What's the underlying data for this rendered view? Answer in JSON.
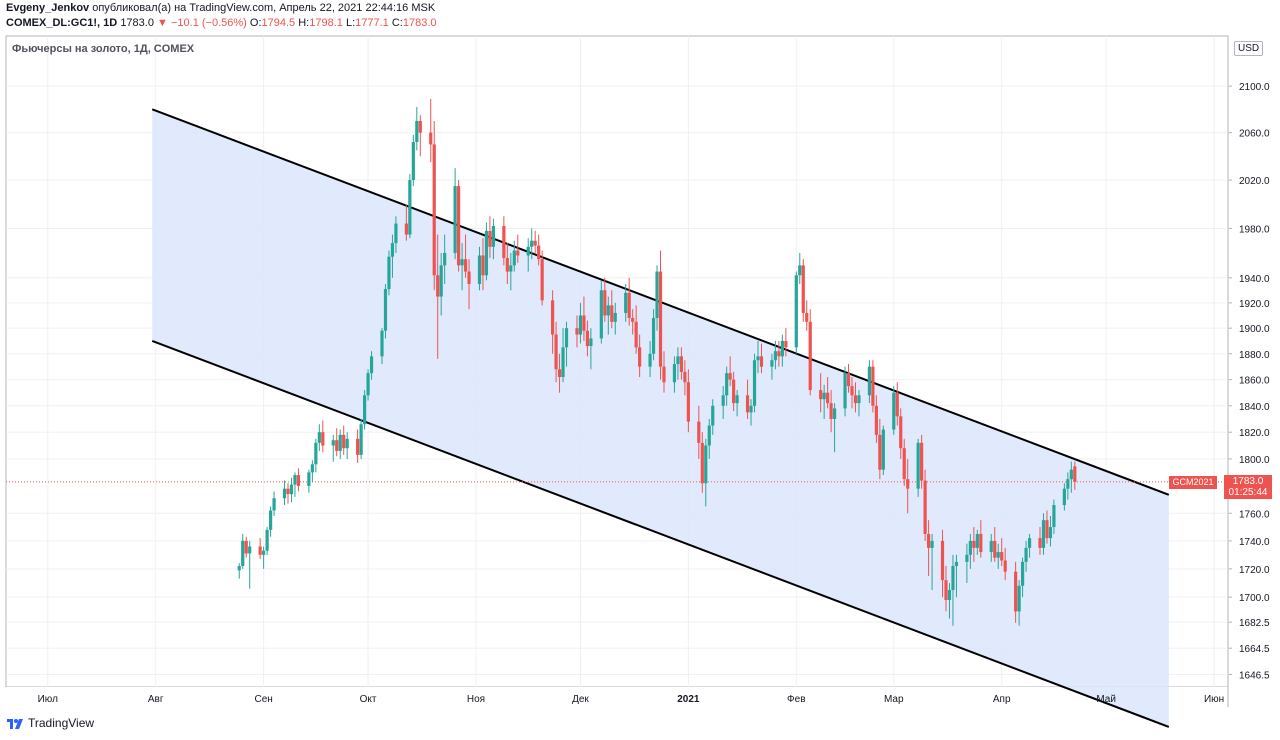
{
  "header": {
    "author": "Evgeny_Jenkov",
    "published_text": "опубликовал(а) на TradingView.com, Апрель 22, 2021 22:44:16 MSK",
    "symbol": "COMEX_DL:GC1!, 1D",
    "last": "1783.0",
    "change": "−10.1 (−0.56%)",
    "ohlc": {
      "o_label": "O:",
      "o": "1794.5",
      "h_label": "H:",
      "h": "1798.1",
      "l_label": "L:",
      "l": "1777.1",
      "c_label": "C:",
      "c": "1783.0"
    }
  },
  "chart_title": "Фьючерсы на золото, 1Д, COMEX",
  "currency_button": "USD",
  "price_label": {
    "symbol": "GCM2021",
    "price": "1783.0",
    "countdown": "01:25:44"
  },
  "footer_logo": "TradingView",
  "colors": {
    "up": "#26a69a",
    "down": "#ef5350",
    "channel_fill": "#dbe6fb",
    "channel_line": "#000000",
    "grid": "#eef0f3"
  },
  "chart_data": {
    "type": "candlestick",
    "title": "Фьючерсы на золото, 1Д, COMEX",
    "y_ticks": [
      "2100.0",
      "2060.0",
      "2020.0",
      "1980.0",
      "1940.0",
      "1920.0",
      "1900.0",
      "1880.0",
      "1860.0",
      "1840.0",
      "1820.0",
      "1800.0",
      "1760.0",
      "1740.0",
      "1720.0",
      "1700.0",
      "1682.5",
      "1664.5",
      "1646.5"
    ],
    "x_ticks": [
      "Июл",
      "Авг",
      "Сен",
      "Окт",
      "Ноя",
      "Дек",
      "2021",
      "Фев",
      "Мар",
      "Апр",
      "Май",
      "Июн"
    ],
    "x_range": [
      "2020-06-19",
      "2021-06-05"
    ],
    "last_date": "2021-04-22",
    "last_price": 1783.0,
    "candles": [
      [
        1719,
        1724,
        1713,
        1722
      ],
      [
        1722,
        1745,
        1720,
        1740
      ],
      [
        1740,
        1743,
        1728,
        1731
      ],
      [
        1731,
        1740,
        1706,
        1736
      ],
      [
        1736,
        1742,
        1727,
        1730
      ],
      [
        1730,
        1736,
        1720,
        1733
      ],
      [
        1733,
        1750,
        1730,
        1748
      ],
      [
        1748,
        1765,
        1743,
        1762
      ],
      [
        1762,
        1776,
        1758,
        1771
      ],
      [
        1771,
        1784,
        1766,
        1778
      ],
      [
        1778,
        1782,
        1767,
        1774
      ],
      [
        1774,
        1786,
        1768,
        1781
      ],
      [
        1781,
        1790,
        1772,
        1788
      ],
      [
        1788,
        1793,
        1776,
        1780
      ],
      [
        1780,
        1792,
        1775,
        1790
      ],
      [
        1790,
        1799,
        1783,
        1796
      ],
      [
        1796,
        1815,
        1790,
        1812
      ],
      [
        1812,
        1826,
        1806,
        1820
      ],
      [
        1820,
        1829,
        1805,
        1810
      ],
      [
        1810,
        1818,
        1798,
        1814
      ],
      [
        1814,
        1823,
        1802,
        1806
      ],
      [
        1806,
        1822,
        1800,
        1818
      ],
      [
        1818,
        1825,
        1803,
        1808
      ],
      [
        1808,
        1820,
        1800,
        1815
      ],
      [
        1815,
        1822,
        1797,
        1803
      ],
      [
        1803,
        1830,
        1800,
        1826
      ],
      [
        1826,
        1852,
        1822,
        1848
      ],
      [
        1848,
        1868,
        1844,
        1865
      ],
      [
        1865,
        1882,
        1860,
        1878
      ],
      [
        1878,
        1900,
        1872,
        1898
      ],
      [
        1898,
        1935,
        1892,
        1931
      ],
      [
        1931,
        1962,
        1926,
        1957
      ],
      [
        1957,
        1975,
        1940,
        1968
      ],
      [
        1968,
        1990,
        1960,
        1984
      ],
      [
        1984,
        2000,
        1970,
        1975
      ],
      [
        1975,
        2025,
        1972,
        2020
      ],
      [
        2020,
        2058,
        2015,
        2052
      ],
      [
        2052,
        2082,
        2045,
        2070
      ],
      [
        2070,
        2075,
        2040,
        2060
      ],
      [
        2060,
        2089,
        2035,
        2050
      ],
      [
        2050,
        2070,
        1930,
        1942
      ],
      [
        1942,
        1975,
        1876,
        1925
      ],
      [
        1925,
        1960,
        1910,
        1950
      ],
      [
        1950,
        1975,
        1935,
        1960
      ],
      [
        1960,
        2030,
        1955,
        2015
      ],
      [
        2015,
        2020,
        1945,
        1950
      ],
      [
        1950,
        1968,
        1930,
        1955
      ],
      [
        1955,
        1975,
        1940,
        1945
      ],
      [
        1945,
        1955,
        1915,
        1935
      ],
      [
        1935,
        1965,
        1930,
        1958
      ],
      [
        1958,
        1972,
        1930,
        1942
      ],
      [
        1942,
        1985,
        1938,
        1978
      ],
      [
        1978,
        1990,
        1956,
        1965
      ],
      [
        1965,
        1988,
        1955,
        1982
      ],
      [
        1982,
        1990,
        1950,
        1956
      ],
      [
        1956,
        1968,
        1935,
        1945
      ],
      [
        1945,
        1960,
        1930,
        1950
      ],
      [
        1950,
        1970,
        1945,
        1962
      ],
      [
        1962,
        1975,
        1952,
        1958
      ],
      [
        1958,
        1972,
        1945,
        1965
      ],
      [
        1965,
        1980,
        1955,
        1970
      ],
      [
        1970,
        1978,
        1960,
        1966
      ],
      [
        1966,
        1975,
        1950,
        1955
      ],
      [
        1955,
        1962,
        1918,
        1922
      ],
      [
        1922,
        1930,
        1880,
        1895
      ],
      [
        1895,
        1905,
        1858,
        1868
      ],
      [
        1868,
        1880,
        1850,
        1862
      ],
      [
        1862,
        1900,
        1858,
        1885
      ],
      [
        1885,
        1905,
        1870,
        1900
      ],
      [
        1900,
        1910,
        1885,
        1895
      ],
      [
        1895,
        1920,
        1888,
        1910
      ],
      [
        1910,
        1925,
        1890,
        1898
      ],
      [
        1898,
        1906,
        1878,
        1886
      ],
      [
        1886,
        1900,
        1868,
        1892
      ],
      [
        1892,
        1938,
        1888,
        1930
      ],
      [
        1930,
        1940,
        1905,
        1910
      ],
      [
        1910,
        1925,
        1895,
        1918
      ],
      [
        1918,
        1930,
        1900,
        1905
      ],
      [
        1905,
        1920,
        1895,
        1912
      ],
      [
        1912,
        1935,
        1905,
        1928
      ],
      [
        1928,
        1940,
        1902,
        1908
      ],
      [
        1908,
        1915,
        1895,
        1905
      ],
      [
        1905,
        1918,
        1880,
        1885
      ],
      [
        1885,
        1895,
        1862,
        1870
      ],
      [
        1870,
        1890,
        1862,
        1880
      ],
      [
        1880,
        1915,
        1875,
        1908
      ],
      [
        1908,
        1950,
        1898,
        1945
      ],
      [
        1945,
        1962,
        1860,
        1870
      ],
      [
        1870,
        1882,
        1850,
        1858
      ],
      [
        1858,
        1878,
        1850,
        1872
      ],
      [
        1872,
        1885,
        1860,
        1878
      ],
      [
        1878,
        1885,
        1860,
        1866
      ],
      [
        1866,
        1875,
        1848,
        1858
      ],
      [
        1858,
        1868,
        1820,
        1828
      ],
      [
        1828,
        1840,
        1800,
        1812
      ],
      [
        1812,
        1820,
        1775,
        1782
      ],
      [
        1782,
        1815,
        1765,
        1810
      ],
      [
        1810,
        1830,
        1800,
        1825
      ],
      [
        1825,
        1845,
        1818,
        1840
      ],
      [
        1840,
        1855,
        1830,
        1848
      ],
      [
        1848,
        1870,
        1840,
        1865
      ],
      [
        1865,
        1878,
        1855,
        1860
      ],
      [
        1860,
        1866,
        1836,
        1842
      ],
      [
        1842,
        1852,
        1832,
        1848
      ],
      [
        1848,
        1860,
        1830,
        1835
      ],
      [
        1835,
        1845,
        1825,
        1840
      ],
      [
        1840,
        1880,
        1835,
        1875
      ],
      [
        1875,
        1890,
        1865,
        1878
      ],
      [
        1878,
        1888,
        1865,
        1870
      ],
      [
        1870,
        1880,
        1860,
        1875
      ],
      [
        1875,
        1890,
        1868,
        1882
      ],
      [
        1882,
        1890,
        1870,
        1878
      ],
      [
        1878,
        1895,
        1870,
        1890
      ],
      [
        1890,
        1900,
        1878,
        1885
      ],
      [
        1885,
        1945,
        1880,
        1942
      ],
      [
        1942,
        1960,
        1935,
        1950
      ],
      [
        1950,
        1955,
        1905,
        1912
      ],
      [
        1912,
        1922,
        1898,
        1905
      ],
      [
        1905,
        1915,
        1848,
        1852
      ],
      [
        1852,
        1865,
        1835,
        1845
      ],
      [
        1845,
        1856,
        1830,
        1850
      ],
      [
        1850,
        1862,
        1838,
        1842
      ],
      [
        1842,
        1852,
        1820,
        1830
      ],
      [
        1830,
        1842,
        1805,
        1838
      ],
      [
        1838,
        1870,
        1832,
        1865
      ],
      [
        1865,
        1872,
        1850,
        1855
      ],
      [
        1855,
        1862,
        1838,
        1848
      ],
      [
        1848,
        1858,
        1835,
        1842
      ],
      [
        1842,
        1852,
        1832,
        1848
      ],
      [
        1848,
        1875,
        1842,
        1870
      ],
      [
        1870,
        1875,
        1835,
        1840
      ],
      [
        1840,
        1848,
        1812,
        1818
      ],
      [
        1818,
        1830,
        1785,
        1792
      ],
      [
        1792,
        1825,
        1788,
        1822
      ],
      [
        1822,
        1855,
        1818,
        1850
      ],
      [
        1850,
        1858,
        1825,
        1832
      ],
      [
        1832,
        1838,
        1800,
        1808
      ],
      [
        1808,
        1815,
        1780,
        1785
      ],
      [
        1785,
        1800,
        1760,
        1778
      ],
      [
        1778,
        1815,
        1772,
        1812
      ],
      [
        1812,
        1818,
        1778,
        1784
      ],
      [
        1784,
        1792,
        1740,
        1745
      ],
      [
        1745,
        1755,
        1715,
        1735
      ],
      [
        1735,
        1745,
        1705,
        1740
      ],
      [
        1740,
        1748,
        1700,
        1712
      ],
      [
        1712,
        1722,
        1690,
        1698
      ],
      [
        1698,
        1710,
        1685,
        1705
      ],
      [
        1705,
        1730,
        1680,
        1722
      ],
      [
        1722,
        1730,
        1700,
        1725
      ],
      [
        1725,
        1738,
        1710,
        1730
      ],
      [
        1730,
        1745,
        1720,
        1740
      ],
      [
        1740,
        1750,
        1725,
        1735
      ],
      [
        1735,
        1748,
        1730,
        1745
      ],
      [
        1745,
        1755,
        1728,
        1732
      ],
      [
        1732,
        1745,
        1725,
        1740
      ],
      [
        1740,
        1750,
        1725,
        1728
      ],
      [
        1728,
        1738,
        1720,
        1732
      ],
      [
        1732,
        1742,
        1722,
        1726
      ],
      [
        1726,
        1735,
        1712,
        1718
      ],
      [
        1718,
        1725,
        1682,
        1690
      ],
      [
        1690,
        1712,
        1680,
        1708
      ],
      [
        1708,
        1728,
        1700,
        1725
      ],
      [
        1725,
        1740,
        1718,
        1735
      ],
      [
        1735,
        1745,
        1728,
        1742
      ],
      [
        1742,
        1750,
        1730,
        1735
      ],
      [
        1735,
        1760,
        1730,
        1755
      ],
      [
        1755,
        1762,
        1738,
        1742
      ],
      [
        1742,
        1758,
        1736,
        1750
      ],
      [
        1750,
        1770,
        1745,
        1766
      ],
      [
        1766,
        1782,
        1762,
        1778
      ],
      [
        1778,
        1790,
        1770,
        1785
      ],
      [
        1785,
        1798,
        1775,
        1792
      ],
      [
        1794.5,
        1798.1,
        1777.1,
        1783.0
      ]
    ],
    "channel": {
      "upper": [
        [
          "2020-07-31",
          2080.0
        ],
        [
          "2021-04-30",
          1792.0
        ]
      ],
      "lower": [
        [
          "2020-07-31",
          1890.0
        ],
        [
          "2021-04-30",
          1628.0
        ]
      ],
      "end_date": "2021-05-19"
    }
  }
}
